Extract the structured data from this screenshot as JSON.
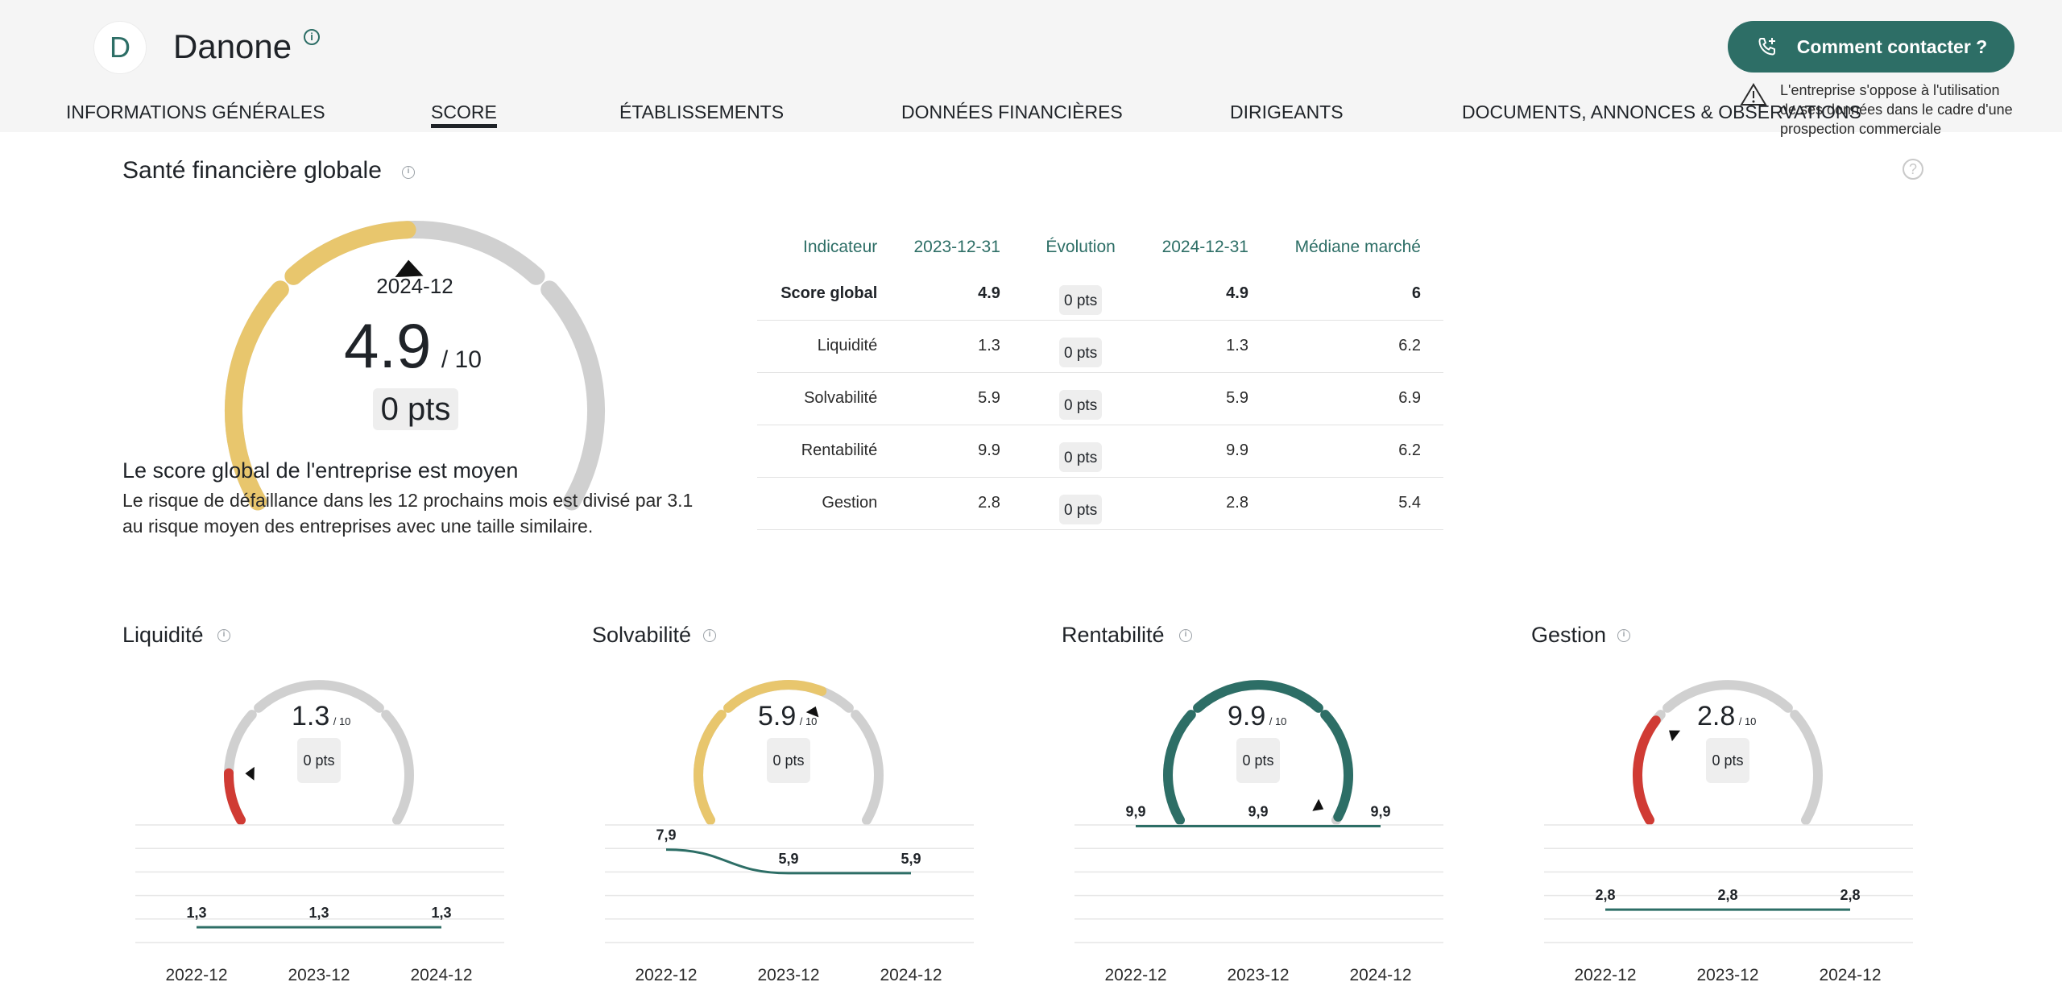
{
  "header": {
    "avatar_letter": "D",
    "company_name": "Danone",
    "contact_button": "Comment contacter ?",
    "warning": "L'entreprise s'oppose à l'utilisation de ses données dans le cadre d'une prospection commerciale",
    "accent_color": "#2d6e66"
  },
  "tabs": [
    {
      "label": "INFORMATIONS GÉNÉRALES",
      "active": false
    },
    {
      "label": "SCORE",
      "active": true
    },
    {
      "label": "ÉTABLISSEMENTS",
      "active": false
    },
    {
      "label": "DONNÉES FINANCIÈRES",
      "active": false
    },
    {
      "label": "DIRIGEANTS",
      "active": false
    },
    {
      "label": "DOCUMENTS, ANNONCES & OBSERVATIONS",
      "active": false
    }
  ],
  "global": {
    "title": "Santé financière globale",
    "period": "2024-12",
    "score": "4.9",
    "max": "/ 10",
    "pts": "0 pts",
    "gauge_fraction": 0.49,
    "summary_title": "Le score global de l'entreprise est moyen",
    "summary_text": "Le risque de défaillance dans les 12 prochains mois est divisé par 3.1 au risque moyen des entreprises avec une taille similaire."
  },
  "table": {
    "headers": [
      "Indicateur",
      "2023-12-31",
      "Évolution",
      "2024-12-31",
      "Médiane marché"
    ],
    "rows": [
      {
        "name": "Score global",
        "v1": "4.9",
        "evo": "0 pts",
        "v2": "4.9",
        "median": "6"
      },
      {
        "name": "Liquidité",
        "v1": "1.3",
        "evo": "0 pts",
        "v2": "1.3",
        "median": "6.2"
      },
      {
        "name": "Solvabilité",
        "v1": "5.9",
        "evo": "0 pts",
        "v2": "5.9",
        "median": "6.9"
      },
      {
        "name": "Rentabilité",
        "v1": "9.9",
        "evo": "0 pts",
        "v2": "9.9",
        "median": "6.2"
      },
      {
        "name": "Gestion",
        "v1": "2.8",
        "evo": "0 pts",
        "v2": "2.8",
        "median": "5.4"
      }
    ]
  },
  "cards": [
    {
      "title": "Liquidité",
      "score": "1.3",
      "max": "/ 10",
      "pts": "0 pts",
      "fraction": 0.13,
      "color": "#d03b34"
    },
    {
      "title": "Solvabilité",
      "score": "5.9",
      "max": "/ 10",
      "pts": "0 pts",
      "fraction": 0.59,
      "color": "#e8c66d"
    },
    {
      "title": "Rentabilité",
      "score": "9.9",
      "max": "/ 10",
      "pts": "0 pts",
      "fraction": 0.99,
      "color": "#2d6e66"
    },
    {
      "title": "Gestion",
      "score": "2.8",
      "max": "/ 10",
      "pts": "0 pts",
      "fraction": 0.28,
      "color": "#d03b34"
    }
  ],
  "chart_data": [
    {
      "type": "line",
      "categories": [
        "2022-12",
        "2023-12",
        "2024-12"
      ],
      "values": [
        1.3,
        1.3,
        1.3
      ],
      "labels": [
        "1,3",
        "1,3",
        "1,3"
      ],
      "ylim": [
        0,
        10
      ],
      "grid": true
    },
    {
      "type": "line",
      "categories": [
        "2022-12",
        "2023-12",
        "2024-12"
      ],
      "values": [
        7.9,
        5.9,
        5.9
      ],
      "labels": [
        "7,9",
        "5,9",
        "5,9"
      ],
      "ylim": [
        0,
        10
      ],
      "grid": true
    },
    {
      "type": "line",
      "categories": [
        "2022-12",
        "2023-12",
        "2024-12"
      ],
      "values": [
        9.9,
        9.9,
        9.9
      ],
      "labels": [
        "9,9",
        "9,9",
        "9,9"
      ],
      "ylim": [
        0,
        10
      ],
      "grid": true
    },
    {
      "type": "line",
      "categories": [
        "2022-12",
        "2023-12",
        "2024-12"
      ],
      "values": [
        2.8,
        2.8,
        2.8
      ],
      "labels": [
        "2,8",
        "2,8",
        "2,8"
      ],
      "ylim": [
        0,
        10
      ],
      "grid": true
    }
  ]
}
